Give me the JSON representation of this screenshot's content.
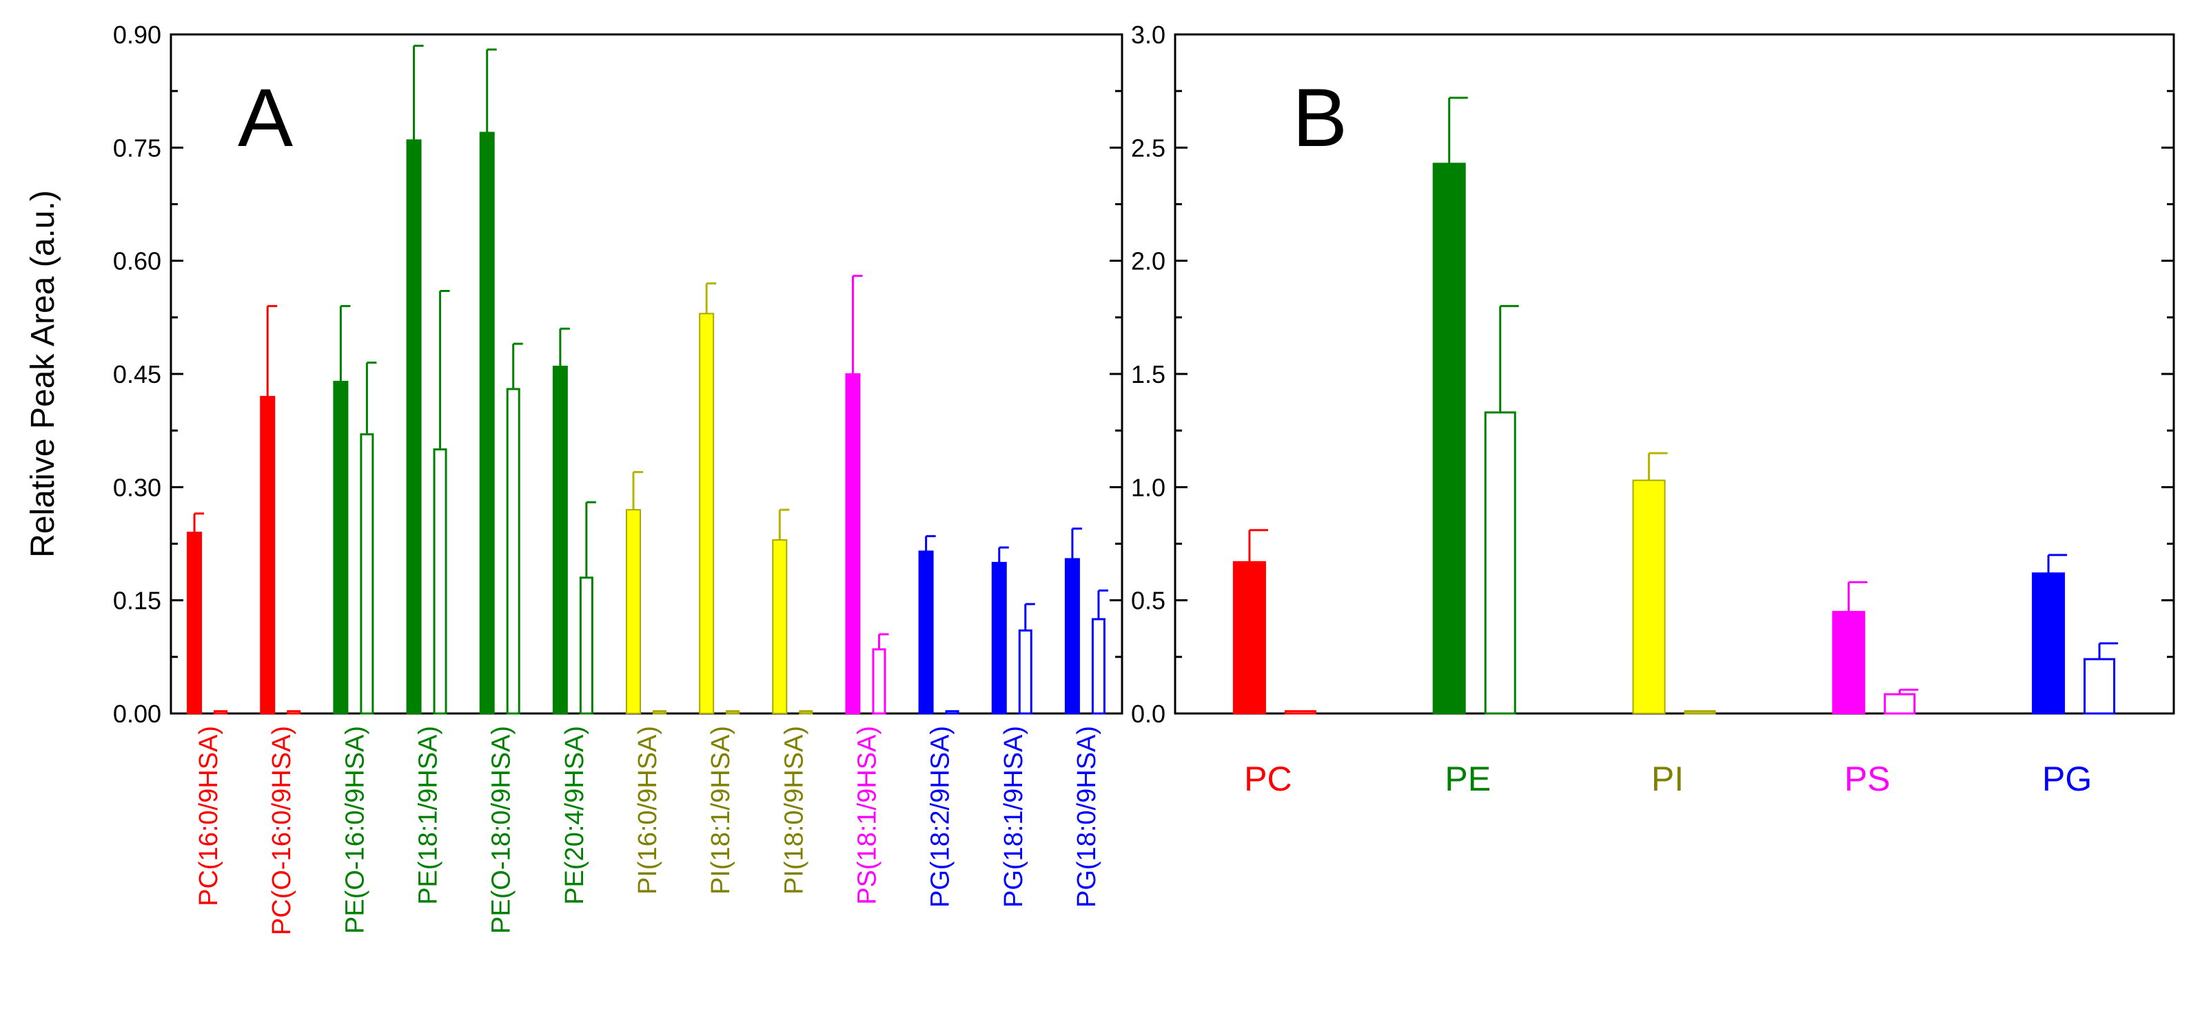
{
  "chart_data": [
    {
      "panel": "A",
      "type": "bar",
      "ylabel": "Relative Peak Area (a.u.)",
      "ylim": [
        0,
        0.9
      ],
      "yticks": [
        "0.00",
        "0.15",
        "0.30",
        "0.45",
        "0.60",
        "0.75",
        "0.90"
      ],
      "categories": [
        {
          "label": "PC(16:0/9HSA)",
          "color": "#ff0000",
          "filled": 0.24,
          "filled_err": 0.025,
          "open": 0.003,
          "open_err": 0
        },
        {
          "label": "PC(O-16:0/9HSA)",
          "color": "#ff0000",
          "filled": 0.42,
          "filled_err": 0.12,
          "open": 0.003,
          "open_err": 0
        },
        {
          "label": "PE(O-16:0/9HSA)",
          "color": "#008000",
          "filled": 0.44,
          "filled_err": 0.1,
          "open": 0.37,
          "open_err": 0.095
        },
        {
          "label": "PE(18:1/9HSA)",
          "color": "#008000",
          "filled": 0.76,
          "filled_err": 0.125,
          "open": 0.35,
          "open_err": 0.21
        },
        {
          "label": "PE(O-18:0/9HSA)",
          "color": "#008000",
          "filled": 0.77,
          "filled_err": 0.11,
          "open": 0.43,
          "open_err": 0.06
        },
        {
          "label": "PE(20:4/9HSA)",
          "color": "#008000",
          "filled": 0.46,
          "filled_err": 0.05,
          "open": 0.18,
          "open_err": 0.1
        },
        {
          "label": "PI(16:0/9HSA)",
          "color": "#ffff00",
          "text_color": "#808000",
          "filled": 0.27,
          "filled_err": 0.05,
          "open": 0.003,
          "open_err": 0
        },
        {
          "label": "PI(18:1/9HSA)",
          "color": "#ffff00",
          "text_color": "#808000",
          "filled": 0.53,
          "filled_err": 0.04,
          "open": 0.003,
          "open_err": 0
        },
        {
          "label": "PI(18:0/9HSA)",
          "color": "#ffff00",
          "text_color": "#808000",
          "filled": 0.23,
          "filled_err": 0.04,
          "open": 0.003,
          "open_err": 0
        },
        {
          "label": "PS(18:1/9HSA)",
          "color": "#ff00ff",
          "filled": 0.45,
          "filled_err": 0.13,
          "open": 0.085,
          "open_err": 0.02
        },
        {
          "label": "PG(18:2/9HSA)",
          "color": "#0000ff",
          "filled": 0.215,
          "filled_err": 0.02,
          "open": 0.003,
          "open_err": 0
        },
        {
          "label": "PG(18:1/9HSA)",
          "color": "#0000ff",
          "filled": 0.2,
          "filled_err": 0.02,
          "open": 0.11,
          "open_err": 0.035
        },
        {
          "label": "PG(18:0/9HSA)",
          "color": "#0000ff",
          "filled": 0.205,
          "filled_err": 0.04,
          "open": 0.125,
          "open_err": 0.038
        }
      ]
    },
    {
      "panel": "B",
      "type": "bar",
      "ylabel": "",
      "ylim": [
        0,
        3.0
      ],
      "yticks": [
        "0.0",
        "0.5",
        "1.0",
        "1.5",
        "2.0",
        "2.5",
        "3.0"
      ],
      "categories": [
        {
          "label": "PC",
          "color": "#ff0000",
          "filled": 0.67,
          "filled_err": 0.14,
          "open": 0.01,
          "open_err": 0
        },
        {
          "label": "PE",
          "color": "#008000",
          "filled": 2.43,
          "filled_err": 0.29,
          "open": 1.33,
          "open_err": 0.47
        },
        {
          "label": "PI",
          "color": "#ffff00",
          "text_color": "#808000",
          "filled": 1.03,
          "filled_err": 0.12,
          "open": 0.01,
          "open_err": 0
        },
        {
          "label": "PS",
          "color": "#ff00ff",
          "filled": 0.45,
          "filled_err": 0.13,
          "open": 0.085,
          "open_err": 0.02
        },
        {
          "label": "PG",
          "color": "#0000ff",
          "filled": 0.62,
          "filled_err": 0.08,
          "open": 0.24,
          "open_err": 0.07
        }
      ]
    }
  ]
}
